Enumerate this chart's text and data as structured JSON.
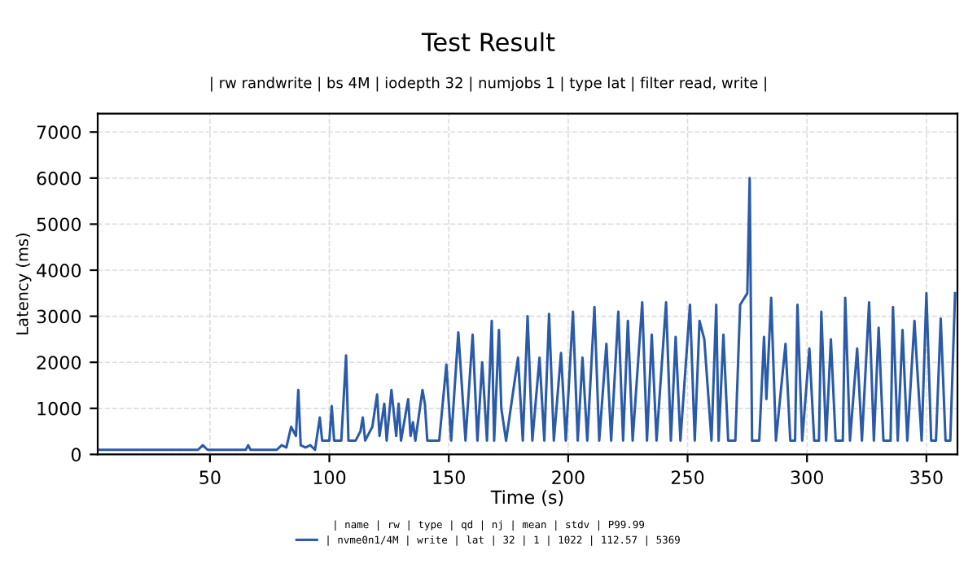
{
  "chart_data": {
    "type": "line",
    "title": "Test Result",
    "subtitle": "| rw randwrite | bs 4M | iodepth 32 | numjobs 1 | type lat | filter read, write |",
    "xlabel": "Time (s)",
    "ylabel": "Latency (ms)",
    "x": [
      3,
      45,
      47,
      49,
      65,
      66,
      67,
      78,
      80,
      82,
      84,
      86,
      87,
      88,
      90,
      92,
      94,
      96,
      97,
      100,
      101,
      102,
      105,
      107,
      108,
      111,
      113,
      114,
      115,
      118,
      120,
      121,
      123,
      124,
      126,
      128,
      129,
      130,
      133,
      134,
      135,
      136,
      139,
      140,
      141,
      146,
      149,
      151,
      154,
      157,
      160,
      162,
      164,
      166,
      168,
      169,
      171,
      172,
      174,
      179,
      181,
      183,
      185,
      188,
      190,
      192,
      194,
      197,
      199,
      202,
      204,
      206,
      208,
      211,
      213,
      216,
      218,
      221,
      223,
      225,
      227,
      231,
      233,
      235,
      237,
      241,
      243,
      245,
      247,
      251,
      253,
      255,
      257,
      260,
      262,
      263,
      265,
      267,
      270,
      272,
      275,
      276,
      277,
      280,
      282,
      283,
      285,
      287,
      291,
      293,
      295,
      296,
      298,
      301,
      303,
      305,
      306,
      308,
      310,
      312,
      315,
      316,
      318,
      321,
      323,
      326,
      328,
      330,
      332,
      335,
      336,
      338,
      340,
      342,
      345,
      346,
      348,
      350,
      352,
      354,
      356,
      358,
      360,
      362
    ],
    "series": [
      {
        "name": "| nvme0n1/4M | write | lat | 32 | 1 | 1022 | 112.57 | 5369",
        "color": "#2a5aa8",
        "values": [
          100,
          100,
          200,
          100,
          100,
          200,
          100,
          100,
          200,
          150,
          600,
          400,
          1400,
          200,
          150,
          200,
          100,
          800,
          300,
          300,
          1050,
          300,
          300,
          2150,
          300,
          300,
          500,
          800,
          300,
          600,
          1300,
          400,
          1100,
          300,
          1400,
          400,
          1100,
          300,
          1200,
          400,
          700,
          300,
          1400,
          1100,
          300,
          300,
          1950,
          300,
          2650,
          300,
          2600,
          300,
          2000,
          300,
          2900,
          300,
          2700,
          1000,
          300,
          2100,
          300,
          3000,
          300,
          2100,
          300,
          3050,
          300,
          2200,
          300,
          3100,
          300,
          2100,
          300,
          3200,
          300,
          2400,
          300,
          3100,
          300,
          2900,
          300,
          3300,
          300,
          2600,
          300,
          3300,
          300,
          2550,
          300,
          3250,
          300,
          2900,
          2500,
          300,
          3250,
          300,
          2600,
          300,
          300,
          3250,
          3500,
          6000,
          300,
          300,
          2550,
          1200,
          3400,
          300,
          2400,
          300,
          300,
          3250,
          300,
          2300,
          300,
          300,
          3100,
          300,
          2500,
          300,
          300,
          3400,
          300,
          2300,
          300,
          3300,
          300,
          2750,
          300,
          300,
          3200,
          300,
          2700,
          300,
          2900,
          2000,
          300,
          3500,
          300,
          300,
          2950,
          300,
          300,
          3500
        ]
      }
    ],
    "xlim": [
      3,
      363
    ],
    "xticks": [
      50,
      100,
      150,
      200,
      250,
      300,
      350
    ],
    "ylim": [
      0,
      7400
    ],
    "yticks": [
      0,
      1000,
      2000,
      3000,
      4000,
      5000,
      6000,
      7000
    ],
    "grid": true,
    "legend": "bottom",
    "legend_title": "| name | rw | type | qd | nj | mean | stdv | P99.99"
  }
}
